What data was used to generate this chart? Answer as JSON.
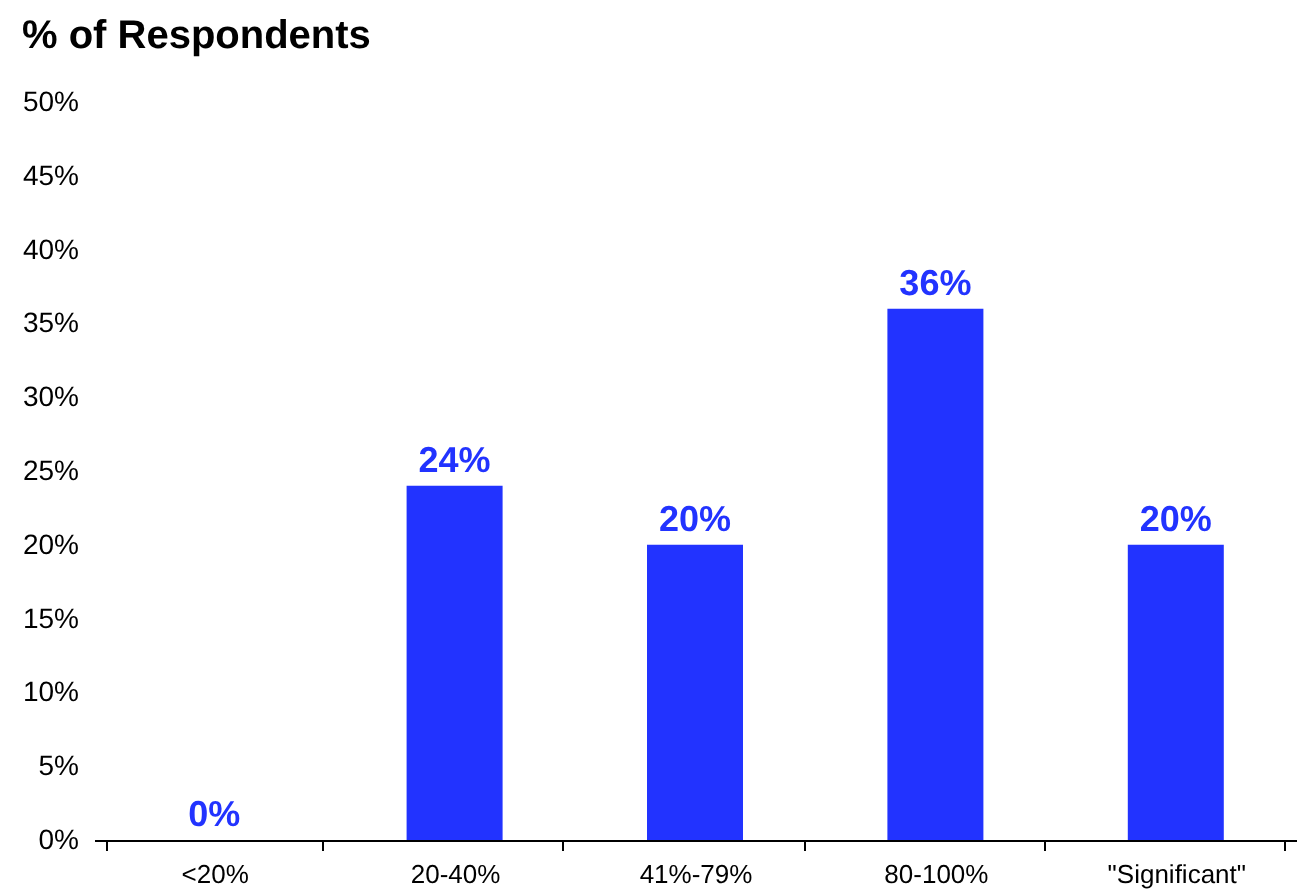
{
  "chart_data": {
    "type": "bar",
    "title": "% of Respondents",
    "categories": [
      "<20%",
      "20-40%",
      "41%-79%",
      "80-100%",
      "\"Significant\""
    ],
    "values": [
      0,
      24,
      20,
      36,
      20
    ],
    "value_labels": [
      "0%",
      "24%",
      "20%",
      "36%",
      "20%"
    ],
    "color": "#2233ff",
    "ylim": [
      0,
      50
    ],
    "yticks": [
      {
        "value": 0,
        "label": "0%"
      },
      {
        "value": 5,
        "label": "5%"
      },
      {
        "value": 10,
        "label": "10%"
      },
      {
        "value": 15,
        "label": "15%"
      },
      {
        "value": 20,
        "label": "20%"
      },
      {
        "value": 25,
        "label": "25%"
      },
      {
        "value": 30,
        "label": "30%"
      },
      {
        "value": 35,
        "label": "35%"
      },
      {
        "value": 40,
        "label": "40%"
      },
      {
        "value": 45,
        "label": "45%"
      },
      {
        "value": 50,
        "label": "50%"
      }
    ],
    "grid": false
  }
}
